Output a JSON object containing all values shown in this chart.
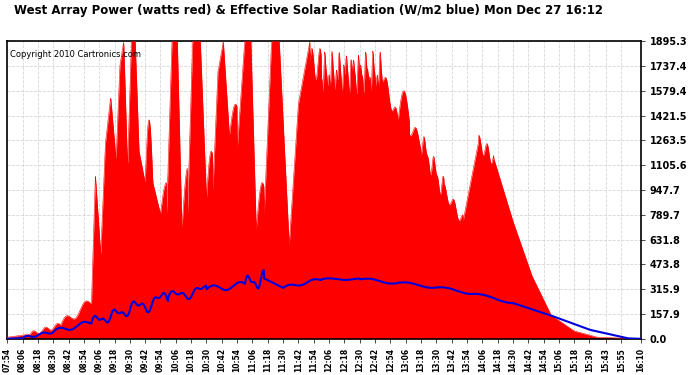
{
  "title": "West Array Power (watts red) & Effective Solar Radiation (W/m2 blue) Mon Dec 27 16:12",
  "copyright": "Copyright 2010 Cartronics.com",
  "background_color": "#ffffff",
  "plot_bg_color": "#ffffff",
  "grid_color": "#cccccc",
  "red_color": "#ff0000",
  "blue_color": "#0000dd",
  "yticks": [
    0.0,
    157.9,
    315.9,
    473.8,
    631.8,
    789.7,
    947.7,
    1105.6,
    1263.5,
    1421.5,
    1579.4,
    1737.4,
    1895.3
  ],
  "ymax": 1895.3,
  "xtick_labels": [
    "07:54",
    "08:06",
    "08:18",
    "08:30",
    "08:42",
    "08:54",
    "09:06",
    "09:18",
    "09:30",
    "09:42",
    "09:54",
    "10:06",
    "10:18",
    "10:30",
    "10:42",
    "10:54",
    "11:06",
    "11:18",
    "11:30",
    "11:42",
    "11:54",
    "12:06",
    "12:18",
    "12:30",
    "12:42",
    "12:54",
    "13:06",
    "13:18",
    "13:30",
    "13:42",
    "13:54",
    "14:06",
    "14:18",
    "14:30",
    "14:42",
    "14:54",
    "15:06",
    "15:18",
    "15:30",
    "15:43",
    "15:55",
    "16:10"
  ]
}
